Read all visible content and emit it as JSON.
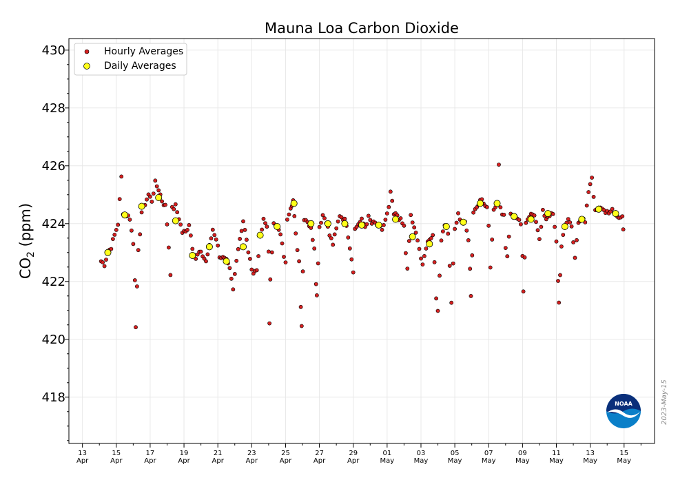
{
  "chart_data": {
    "type": "scatter",
    "title": "Mauna Loa Carbon Dioxide",
    "ylabel": {
      "prefix": "CO",
      "subscript": "2",
      "suffix": " (ppm)"
    },
    "xlabel": "",
    "ylim": [
      416.4,
      430.4
    ],
    "xlim_days": [
      -0.8,
      33.8
    ],
    "x_origin": "2023-04-13",
    "yticks": [
      418,
      420,
      422,
      424,
      426,
      428,
      430
    ],
    "ytick_labels": [
      "418",
      "420",
      "422",
      "424",
      "426",
      "428",
      "430"
    ],
    "xticks": [
      {
        "day": 0,
        "day_label": "13",
        "month": "Apr"
      },
      {
        "day": 2,
        "day_label": "15",
        "month": "Apr"
      },
      {
        "day": 4,
        "day_label": "17",
        "month": "Apr"
      },
      {
        "day": 6,
        "day_label": "19",
        "month": "Apr"
      },
      {
        "day": 8,
        "day_label": "21",
        "month": "Apr"
      },
      {
        "day": 10,
        "day_label": "23",
        "month": "Apr"
      },
      {
        "day": 12,
        "day_label": "25",
        "month": "Apr"
      },
      {
        "day": 14,
        "day_label": "27",
        "month": "Apr"
      },
      {
        "day": 16,
        "day_label": "29",
        "month": "Apr"
      },
      {
        "day": 18,
        "day_label": "01",
        "month": "May"
      },
      {
        "day": 20,
        "day_label": "03",
        "month": "May"
      },
      {
        "day": 22,
        "day_label": "05",
        "month": "May"
      },
      {
        "day": 24,
        "day_label": "07",
        "month": "May"
      },
      {
        "day": 26,
        "day_label": "09",
        "month": "May"
      },
      {
        "day": 28,
        "day_label": "11",
        "month": "May"
      },
      {
        "day": 30,
        "day_label": "13",
        "month": "May"
      },
      {
        "day": 32,
        "day_label": "15",
        "month": "May"
      }
    ],
    "grid": true,
    "legend": {
      "position": "top-left",
      "entries": [
        "Hourly Averages",
        "Daily Averages"
      ]
    },
    "series": [
      {
        "name": "Hourly Averages",
        "marker": "circle-small",
        "color": "#d62020",
        "edge_color": "#000000",
        "anchors": [
          [
            1.1,
            422.7
          ],
          [
            1.3,
            422.6
          ],
          [
            1.5,
            423.0
          ],
          [
            1.7,
            423.2
          ],
          [
            1.9,
            423.6
          ],
          [
            2.1,
            424.0
          ],
          [
            2.2,
            424.8
          ],
          [
            2.3,
            425.6
          ],
          [
            2.4,
            424.4
          ],
          [
            2.6,
            424.3
          ],
          [
            2.8,
            424.2
          ],
          [
            3.0,
            423.3
          ],
          [
            3.1,
            422.1
          ],
          [
            3.15,
            420.5
          ],
          [
            3.3,
            423.0
          ],
          [
            3.5,
            424.4
          ],
          [
            3.7,
            424.7
          ],
          [
            3.9,
            425.0
          ],
          [
            4.1,
            424.8
          ],
          [
            4.3,
            425.4
          ],
          [
            4.5,
            425.2
          ],
          [
            4.7,
            424.8
          ],
          [
            4.9,
            424.6
          ],
          [
            5.0,
            424.0
          ],
          [
            5.1,
            423.2
          ],
          [
            5.2,
            422.3
          ],
          [
            5.3,
            424.5
          ],
          [
            5.5,
            424.6
          ],
          [
            5.7,
            424.2
          ],
          [
            5.9,
            423.7
          ],
          [
            6.1,
            423.7
          ],
          [
            6.3,
            424.0
          ],
          [
            6.5,
            423.2
          ],
          [
            6.7,
            422.8
          ],
          [
            6.9,
            423.0
          ],
          [
            7.1,
            422.9
          ],
          [
            7.3,
            422.7
          ],
          [
            7.5,
            423.2
          ],
          [
            7.7,
            423.8
          ],
          [
            7.9,
            423.5
          ],
          [
            8.1,
            422.9
          ],
          [
            8.3,
            422.8
          ],
          [
            8.5,
            422.7
          ],
          [
            8.7,
            422.4
          ],
          [
            8.9,
            421.7
          ],
          [
            9.1,
            422.8
          ],
          [
            9.3,
            423.5
          ],
          [
            9.5,
            424.1
          ],
          [
            9.7,
            423.4
          ],
          [
            9.9,
            422.7
          ],
          [
            10.1,
            422.3
          ],
          [
            10.3,
            422.4
          ],
          [
            10.5,
            423.5
          ],
          [
            10.7,
            424.1
          ],
          [
            10.9,
            423.9
          ],
          [
            11.0,
            423.1
          ],
          [
            11.05,
            420.5
          ],
          [
            11.1,
            422.0
          ],
          [
            11.3,
            424.1
          ],
          [
            11.5,
            423.9
          ],
          [
            11.7,
            423.6
          ],
          [
            11.9,
            422.9
          ],
          [
            12.0,
            422.6
          ],
          [
            12.1,
            424.2
          ],
          [
            12.3,
            424.6
          ],
          [
            12.45,
            424.8
          ],
          [
            12.6,
            423.6
          ],
          [
            12.8,
            422.7
          ],
          [
            12.9,
            421.2
          ],
          [
            12.95,
            420.5
          ],
          [
            13.1,
            424.2
          ],
          [
            13.3,
            424.1
          ],
          [
            13.5,
            423.8
          ],
          [
            13.7,
            423.2
          ],
          [
            13.8,
            422.0
          ],
          [
            13.85,
            421.5
          ],
          [
            14.0,
            423.9
          ],
          [
            14.2,
            424.3
          ],
          [
            14.4,
            424.1
          ],
          [
            14.6,
            423.6
          ],
          [
            14.8,
            423.3
          ],
          [
            15.0,
            423.8
          ],
          [
            15.2,
            424.3
          ],
          [
            15.4,
            424.2
          ],
          [
            15.6,
            424.0
          ],
          [
            15.8,
            423.2
          ],
          [
            16.0,
            422.4
          ],
          [
            16.1,
            423.8
          ],
          [
            16.3,
            424.0
          ],
          [
            16.5,
            424.1
          ],
          [
            16.7,
            423.9
          ],
          [
            16.9,
            424.2
          ],
          [
            17.1,
            424.0
          ],
          [
            17.3,
            424.0
          ],
          [
            17.5,
            423.9
          ],
          [
            17.7,
            423.8
          ],
          [
            17.9,
            424.1
          ],
          [
            18.1,
            424.5
          ],
          [
            18.2,
            425.1
          ],
          [
            18.4,
            424.3
          ],
          [
            18.6,
            424.3
          ],
          [
            18.8,
            424.1
          ],
          [
            19.0,
            423.9
          ],
          [
            19.1,
            423.0
          ],
          [
            19.2,
            422.4
          ],
          [
            19.4,
            424.3
          ],
          [
            19.6,
            423.8
          ],
          [
            19.8,
            423.5
          ],
          [
            20.0,
            422.8
          ],
          [
            20.1,
            422.5
          ],
          [
            20.3,
            423.2
          ],
          [
            20.5,
            423.5
          ],
          [
            20.7,
            423.6
          ],
          [
            20.8,
            422.7
          ],
          [
            20.9,
            421.5
          ],
          [
            21.0,
            420.9
          ],
          [
            21.2,
            423.5
          ],
          [
            21.4,
            424.0
          ],
          [
            21.6,
            423.7
          ],
          [
            21.7,
            422.5
          ],
          [
            21.8,
            421.3
          ],
          [
            22.0,
            423.8
          ],
          [
            22.2,
            424.3
          ],
          [
            22.4,
            424.1
          ],
          [
            22.6,
            424.0
          ],
          [
            22.8,
            423.5
          ],
          [
            22.9,
            422.5
          ],
          [
            22.95,
            421.5
          ],
          [
            23.1,
            424.4
          ],
          [
            23.3,
            424.6
          ],
          [
            23.5,
            424.9
          ],
          [
            23.7,
            424.7
          ],
          [
            23.9,
            424.5
          ],
          [
            24.0,
            424.0
          ],
          [
            24.1,
            422.5
          ],
          [
            24.3,
            424.5
          ],
          [
            24.5,
            424.8
          ],
          [
            24.6,
            426.0
          ],
          [
            24.7,
            424.5
          ],
          [
            24.9,
            424.3
          ],
          [
            25.0,
            423.2
          ],
          [
            25.1,
            422.9
          ],
          [
            25.3,
            424.3
          ],
          [
            25.5,
            424.3
          ],
          [
            25.7,
            424.1
          ],
          [
            25.9,
            424.0
          ],
          [
            26.0,
            422.8
          ],
          [
            26.05,
            421.6
          ],
          [
            26.2,
            424.1
          ],
          [
            26.4,
            424.3
          ],
          [
            26.6,
            424.3
          ],
          [
            26.8,
            424.1
          ],
          [
            27.0,
            423.5
          ],
          [
            27.2,
            424.4
          ],
          [
            27.4,
            424.1
          ],
          [
            27.6,
            424.3
          ],
          [
            27.8,
            424.4
          ],
          [
            28.0,
            423.3
          ],
          [
            28.1,
            422.0
          ],
          [
            28.15,
            421.3
          ],
          [
            28.3,
            423.2
          ],
          [
            28.5,
            424.0
          ],
          [
            28.7,
            424.1
          ],
          [
            28.9,
            423.9
          ],
          [
            29.1,
            422.8
          ],
          [
            29.3,
            424.1
          ],
          [
            29.5,
            424.2
          ],
          [
            29.7,
            424.0
          ],
          [
            29.9,
            425.1
          ],
          [
            30.0,
            425.3
          ],
          [
            30.1,
            425.6
          ],
          [
            30.3,
            424.4
          ],
          [
            30.5,
            424.6
          ],
          [
            30.7,
            424.6
          ],
          [
            30.9,
            424.4
          ],
          [
            31.1,
            424.3
          ],
          [
            31.3,
            424.5
          ],
          [
            31.5,
            424.4
          ],
          [
            31.7,
            424.2
          ],
          [
            31.9,
            424.3
          ],
          [
            31.95,
            423.8
          ]
        ]
      },
      {
        "name": "Daily Averages",
        "marker": "circle-large",
        "color": "#ffff1a",
        "edge_color": "#000000",
        "x": [
          1.5,
          2.5,
          3.5,
          4.5,
          5.5,
          6.5,
          7.5,
          8.5,
          9.5,
          10.5,
          11.5,
          12.5,
          13.5,
          14.5,
          15.5,
          16.5,
          17.5,
          18.5,
          19.5,
          20.5,
          21.5,
          22.5,
          23.5,
          24.5,
          25.5,
          26.5,
          27.5,
          28.5,
          29.5,
          30.5,
          31.5
        ],
        "y": [
          423.0,
          424.3,
          424.6,
          424.9,
          424.1,
          422.9,
          423.2,
          422.7,
          423.2,
          423.6,
          423.9,
          424.7,
          424.0,
          424.0,
          424.0,
          423.95,
          423.95,
          424.15,
          423.55,
          423.3,
          423.9,
          424.05,
          424.7,
          424.7,
          424.25,
          424.15,
          424.35,
          423.9,
          424.15,
          424.5,
          424.35
        ]
      }
    ]
  },
  "watermark": {
    "date_label": "2023-May-15",
    "logo_text": "NOAA"
  }
}
